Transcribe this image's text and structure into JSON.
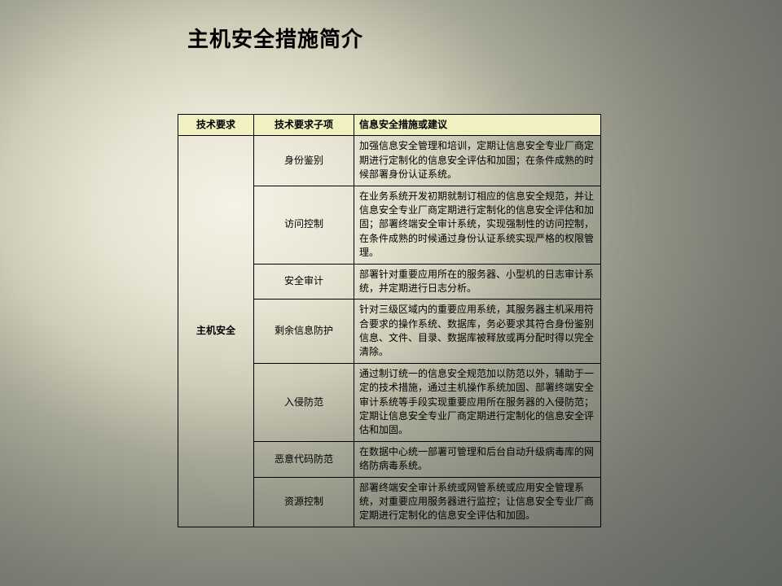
{
  "title": "主机安全措施简介",
  "table": {
    "headers": {
      "col1": "技术要求",
      "col2": "技术要求子项",
      "col3": "信息安全措施或建议"
    },
    "category": "主机安全",
    "rows": [
      {
        "sub": "身份鉴别",
        "desc": "加强信息安全管理和培训，定期让信息安全专业厂商定期进行定制化的信息安全评估和加固；在条件成熟的时候部署身份认证系统。"
      },
      {
        "sub": "访问控制",
        "desc": "在业务系统开发初期就制订相应的信息安全规范，并让信息安全专业厂商定期进行定制化的信息安全评估和加固；部署终端安全审计系统，实现强制性的访问控制，在条件成熟的时候通过身份认证系统实现严格的权限管理。"
      },
      {
        "sub": "安全审计",
        "desc": "部署针对重要应用所在的服务器、小型机的日志审计系统，并定期进行日志分析。"
      },
      {
        "sub": "剩余信息防护",
        "desc": "针对三级区域内的重要应用系统，其服务器主机采用符合要求的操作系统、数据库，务必要求其符合身份鉴别信息、文件、目录、数据库被释放或再分配时得以完全清除。"
      },
      {
        "sub": "入侵防范",
        "desc": "通过制订统一的信息安全规范加以防范以外，辅助于一定的技术措施，通过主机操作系统加固、部署终端安全审计系统等手段实现重要应用所在服务器的入侵防范；定期让信息安全专业厂商定期进行定制化的信息安全评估和加固。"
      },
      {
        "sub": "恶意代码防范",
        "desc": "在数据中心统一部署可管理和后台自动升级病毒库的网络防病毒系统。"
      },
      {
        "sub": "资源控制",
        "desc": "部署终端安全审计系统或网管系统或应用安全管理系统，对重要应用服务器进行监控；让信息安全专业厂商定期进行定制化的信息安全评估和加固。"
      }
    ]
  },
  "styling": {
    "slide_width": 960,
    "slide_height": 720,
    "title_fontsize": 26,
    "title_color": "#000000",
    "header_bg": "#f0f0c0",
    "border_color": "#000000",
    "cell_fontsize": 12,
    "background_gradient": [
      "#f5f2e6",
      "#e8e4d3",
      "#cfcdb8",
      "#a7a796",
      "#8e8f82",
      "#7a7d74",
      "#6d7069",
      "#5f635e"
    ]
  }
}
